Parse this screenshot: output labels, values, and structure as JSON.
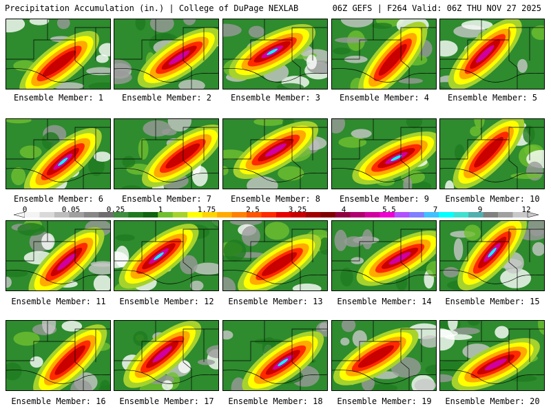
{
  "header": {
    "left": "Precipitation Accumulation (in.) | College of DuPage NEXLAB",
    "right": "06Z GEFS | F264 Valid: 06Z THU NOV 27 2025"
  },
  "members": [
    {
      "label": "Ensemble Member: 1"
    },
    {
      "label": "Ensemble Member: 2"
    },
    {
      "label": "Ensemble Member: 3"
    },
    {
      "label": "Ensemble Member: 4"
    },
    {
      "label": "Ensemble Member: 5"
    },
    {
      "label": "Ensemble Member: 6"
    },
    {
      "label": "Ensemble Member: 7"
    },
    {
      "label": "Ensemble Member: 8"
    },
    {
      "label": "Ensemble Member: 9"
    },
    {
      "label": "Ensemble Member: 10"
    },
    {
      "label": "Ensemble Member: 11"
    },
    {
      "label": "Ensemble Member: 12"
    },
    {
      "label": "Ensemble Member: 13"
    },
    {
      "label": "Ensemble Member: 14"
    },
    {
      "label": "Ensemble Member: 15"
    },
    {
      "label": "Ensemble Member: 16"
    },
    {
      "label": "Ensemble Member: 17"
    },
    {
      "label": "Ensemble Member: 18"
    },
    {
      "label": "Ensemble Member: 19"
    },
    {
      "label": "Ensemble Member: 20"
    }
  ],
  "colorbar": {
    "labels": [
      "0",
      "0.05",
      "0.25",
      "1",
      "1.75",
      "2.5",
      "3.25",
      "4",
      "5.5",
      "7",
      "9",
      "12"
    ],
    "colors": [
      "#f4f4f4",
      "#d9d9d9",
      "#bdbdbd",
      "#a0a0a0",
      "#878787",
      "#6e6e6e",
      "#3f8e3f",
      "#1f7a1f",
      "#0f640f",
      "#6fbf2f",
      "#a6d22e",
      "#ffff00",
      "#ffd400",
      "#ffaa00",
      "#ff8000",
      "#ff5500",
      "#ff2a00",
      "#e60000",
      "#c80000",
      "#a00000",
      "#800000",
      "#900040",
      "#b00070",
      "#d000a0",
      "#ee00d0",
      "#b050ff",
      "#7f7fff",
      "#40c0ff",
      "#00ffff",
      "#40e0d0",
      "#50b0b0",
      "#808080",
      "#a0a0a0",
      "#c8c8c8"
    ]
  }
}
